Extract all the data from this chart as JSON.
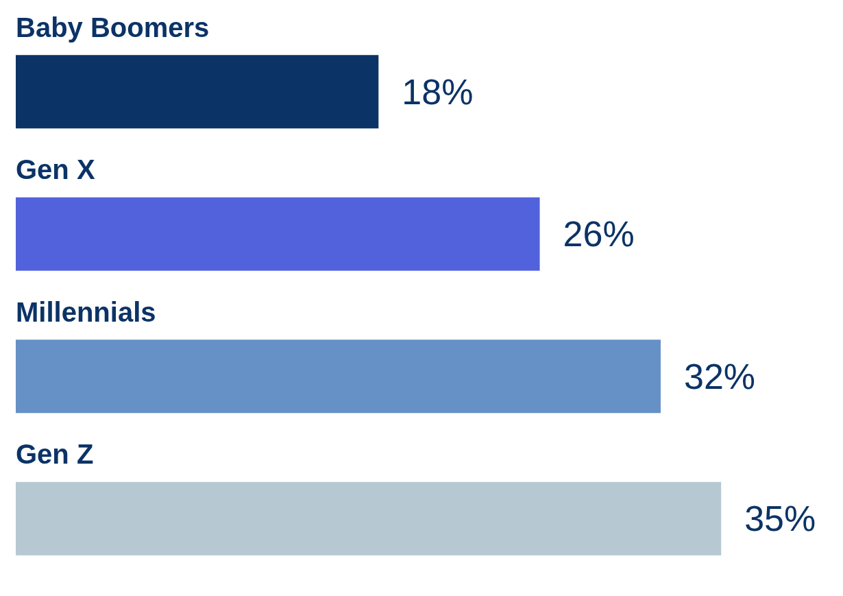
{
  "chart_data": {
    "type": "bar",
    "orientation": "horizontal",
    "categories": [
      "Baby Boomers",
      "Gen X",
      "Millennials",
      "Gen Z"
    ],
    "values": [
      18,
      26,
      32,
      35
    ],
    "colors": [
      "#0b3366",
      "#5262dc",
      "#6691c6",
      "#b6c8d2"
    ],
    "value_labels": [
      "18%",
      "26%",
      "32%",
      "35%"
    ]
  }
}
